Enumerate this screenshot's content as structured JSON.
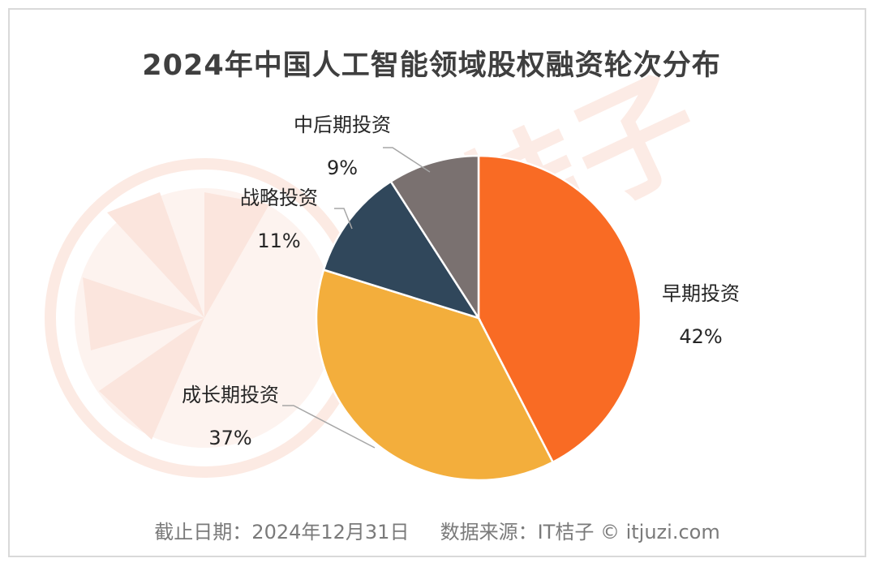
{
  "chart_data": {
    "type": "pie",
    "title": "2024年中国人工智能领域股权融资轮次分布",
    "slices": [
      {
        "label": "早期投资",
        "value": 42,
        "value_label": "42%",
        "color": "#f96b24"
      },
      {
        "label": "成长期投资",
        "value": 37,
        "value_label": "37%",
        "color": "#f3ae3c"
      },
      {
        "label": "战略投资",
        "value": 11,
        "value_label": "11%",
        "color": "#30475b"
      },
      {
        "label": "中后期投资",
        "value": 9,
        "value_label": "9%",
        "color": "#7a7170"
      }
    ],
    "legend": "none",
    "labels": "outside with leader lines"
  },
  "footer": {
    "text": "截止日期：2024年12月31日     数据来源：IT桔子 © itjuzi.com"
  },
  "watermark": {
    "text": "IT桔子",
    "subtext": "itjuzi.com",
    "color": "#fbe3da"
  }
}
